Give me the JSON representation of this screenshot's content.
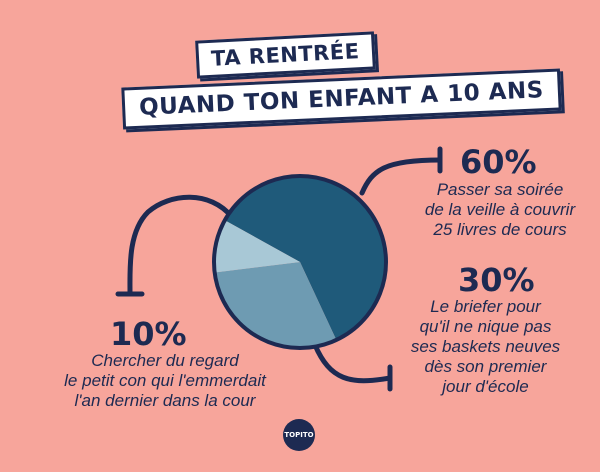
{
  "header": {
    "title_line1": "TA RENTRÉE",
    "title_line2": "QUAND TON ENFANT A 10 ANS"
  },
  "chart_data": {
    "type": "pie",
    "title": "TA RENTRÉE QUAND TON ENFANT A 10 ANS",
    "slices": [
      {
        "label": "Passer sa soirée de la veille à couvrir 25 livres de cours",
        "value": 60,
        "display": "60%",
        "color": "#1f5a7a"
      },
      {
        "label": "Le briefer pour qu'il ne nique pas ses baskets neuves dès son premier jour d'école",
        "value": 30,
        "display": "30%",
        "color": "#6e9bb2"
      },
      {
        "label": "Chercher du regard le petit con qui l'emmerdait l'an dernier dans la cour",
        "value": 10,
        "display": "10%",
        "color": "#a8c8d6"
      }
    ]
  },
  "annotations": {
    "a60": {
      "pct": "60%",
      "lines": [
        "Passer sa soirée",
        "de la veille à couvrir",
        "25 livres de cours"
      ]
    },
    "a30": {
      "pct": "30%",
      "lines": [
        "Le briefer pour",
        "qu'il ne nique pas",
        "ses baskets neuves",
        "dès son premier",
        "jour d'école"
      ]
    },
    "a10": {
      "pct": "10%",
      "lines": [
        "Chercher du regard",
        "le petit con qui l'emmerdait",
        "l'an dernier dans la cour"
      ]
    }
  },
  "logo": {
    "text": "TOPITO"
  },
  "colors": {
    "background": "#f7a59b",
    "ink": "#1d2a52"
  }
}
